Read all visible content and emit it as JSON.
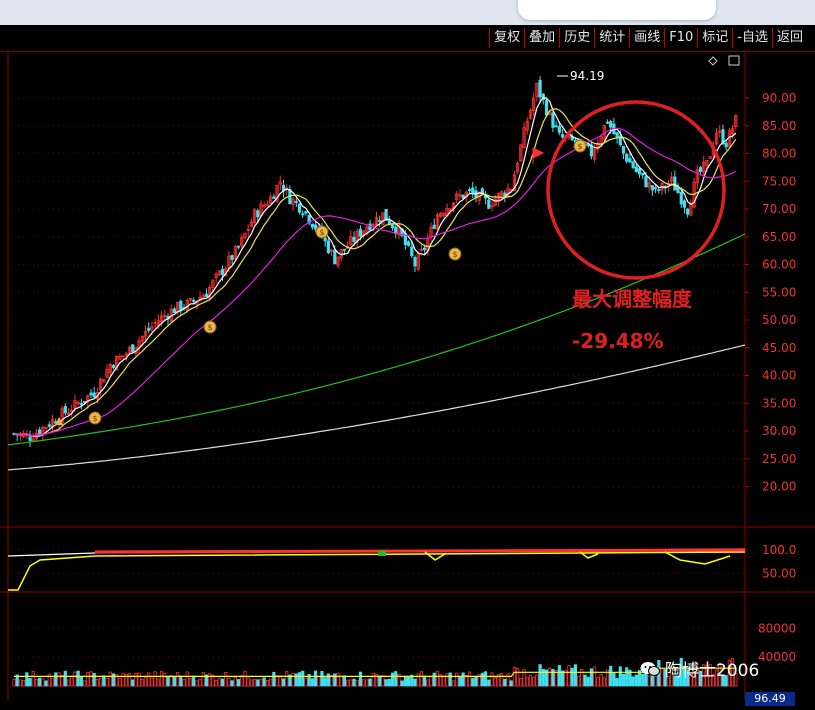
{
  "toolbar": {
    "buttons": [
      "复权",
      "叠加",
      "历史",
      "统计",
      "画线",
      "F10",
      "标记",
      "-自选",
      "返回"
    ]
  },
  "main_chart": {
    "y_ticks": [
      "90.00",
      "85.00",
      "80.00",
      "75.00",
      "70.00",
      "65.00",
      "60.00",
      "55.00",
      "50.00",
      "45.00",
      "40.00",
      "35.00",
      "30.00",
      "25.00",
      "20.00"
    ],
    "peak_label": "94.19",
    "annotation_title": "最大调整幅度",
    "annotation_value": "-29.48%"
  },
  "indicator": {
    "y_ticks": [
      "100.0",
      "50.00"
    ]
  },
  "volume": {
    "y_ticks": [
      "80000",
      "40000"
    ]
  },
  "watermark": "陶博士2006",
  "price_tag": "96.49",
  "colors": {
    "up": "#ff3030",
    "down": "#40e0f0",
    "ma5": "#ffffff",
    "ma10": "#e6e65a",
    "ma20": "#e020e0",
    "ma60": "#20c020",
    "ma120": "#dddddd",
    "annotation": "#e02020"
  }
}
